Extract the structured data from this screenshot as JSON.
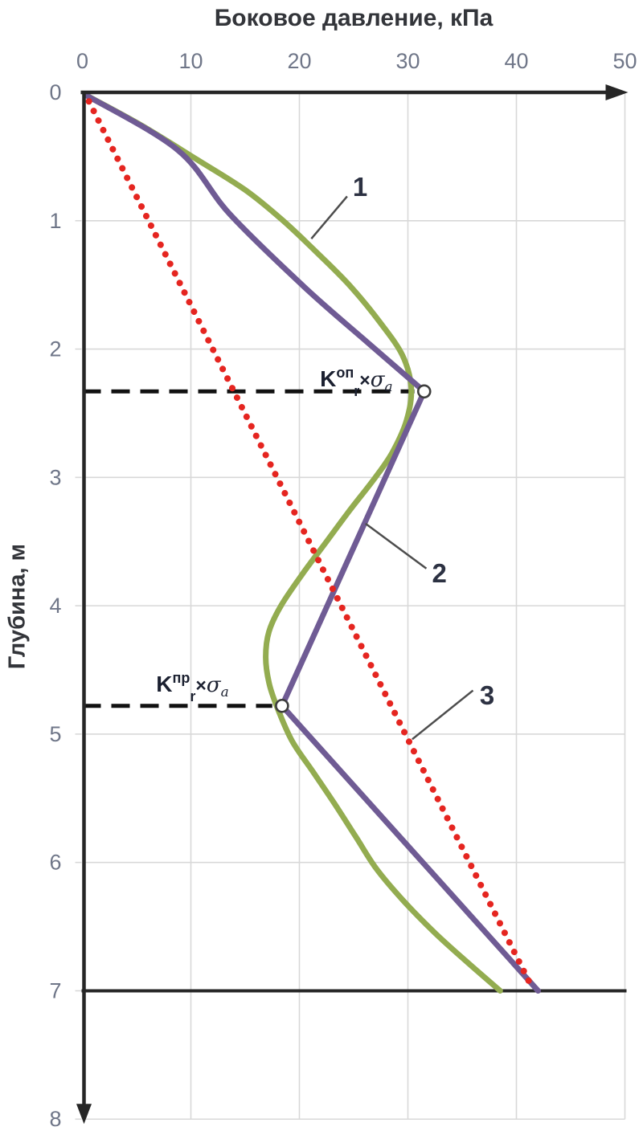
{
  "chart_data": {
    "type": "line",
    "title": "Боковое давление, кПа",
    "xlabel": "Боковое давление, кПа",
    "ylabel": "Глубина, м",
    "x_axis": {
      "min": 0,
      "max": 50,
      "ticks": [
        "0",
        "10",
        "20",
        "30",
        "40",
        "50"
      ],
      "position": "top",
      "arrow": true
    },
    "y_axis": {
      "min": 0,
      "max": 8,
      "ticks": [
        "0",
        "1",
        "2",
        "3",
        "4",
        "5",
        "6",
        "7",
        "8"
      ],
      "position": "left",
      "direction": "down",
      "arrow": true
    },
    "grid": true,
    "base_line_depth": 7,
    "series": [
      {
        "id": "1",
        "name": "1",
        "color": "#93AC50",
        "style": "solid-smooth",
        "width": 7,
        "points_kpa_depth": [
          [
            0.3,
            0.02
          ],
          [
            5.5,
            0.26
          ],
          [
            10.5,
            0.52
          ],
          [
            15,
            0.76
          ],
          [
            18.5,
            1.0
          ],
          [
            22,
            1.28
          ],
          [
            24.8,
            1.52
          ],
          [
            27.5,
            1.8
          ],
          [
            29.5,
            2.05
          ],
          [
            30.3,
            2.3
          ],
          [
            29.9,
            2.55
          ],
          [
            28.6,
            2.8
          ],
          [
            27,
            3.0
          ],
          [
            24.7,
            3.25
          ],
          [
            22.5,
            3.5
          ],
          [
            20.3,
            3.75
          ],
          [
            18.3,
            4.0
          ],
          [
            17.2,
            4.2
          ],
          [
            16.9,
            4.4
          ],
          [
            17.2,
            4.6
          ],
          [
            17.9,
            4.78
          ],
          [
            19.3,
            5.05
          ],
          [
            21.3,
            5.3
          ],
          [
            23.3,
            5.55
          ],
          [
            25.2,
            5.8
          ],
          [
            27.1,
            6.05
          ],
          [
            29.6,
            6.3
          ],
          [
            32.5,
            6.55
          ],
          [
            35.5,
            6.78
          ],
          [
            38.5,
            7.0
          ]
        ]
      },
      {
        "id": "2",
        "name": "2",
        "color": "#6F5B94",
        "style": "solid",
        "width": 7,
        "smooth_points": [
          [
            0.3,
            0.02
          ],
          [
            8.8,
            0.45
          ],
          [
            13.6,
            0.95
          ],
          [
            20.5,
            1.52
          ],
          [
            26.3,
            1.95
          ],
          [
            31.5,
            2.33
          ]
        ],
        "line_points": [
          [
            31.5,
            2.33
          ],
          [
            18.4,
            4.78
          ],
          [
            42.0,
            7.0
          ]
        ]
      },
      {
        "id": "3",
        "name": "3",
        "color": "#E52520",
        "style": "dotted",
        "width": 8,
        "points_kpa_depth": [
          [
            0.6,
            0.07
          ],
          [
            41.3,
            6.95
          ]
        ]
      }
    ],
    "markers": [
      {
        "kpa": 31.5,
        "depth": 2.33
      },
      {
        "kpa": 18.4,
        "depth": 4.78
      }
    ],
    "dashed_levels": [
      {
        "depth": 2.33,
        "kpa_end": 30.6,
        "anchor": {
          "kpa": 28.6,
          "depth": 2.29
        },
        "label": {
          "base": "K",
          "sup": "оп",
          "sub": "r",
          "times": "×",
          "sigma": "σ",
          "sigma_sub": "a"
        }
      },
      {
        "depth": 4.78,
        "kpa_end": 17.5,
        "anchor": {
          "kpa": 13.5,
          "depth": 4.67
        },
        "label": {
          "base": "K",
          "sup": "пр",
          "sub": "r",
          "times": "×",
          "sigma": "σ",
          "sigma_sub": "a"
        }
      }
    ],
    "series_labels": [
      {
        "text": "1",
        "at": {
          "kpa": 25.6,
          "depth": 0.74
        },
        "leader_from": {
          "kpa": 21.1,
          "depth": 1.14
        },
        "leader_to": {
          "kpa": 24.4,
          "depth": 0.81
        }
      },
      {
        "text": "2",
        "at": {
          "kpa": 32.9,
          "depth": 3.75
        },
        "leader_from": {
          "kpa": 26.1,
          "depth": 3.36
        },
        "leader_to": {
          "kpa": 31.7,
          "depth": 3.71
        }
      },
      {
        "text": "3",
        "at": {
          "kpa": 37.3,
          "depth": 4.7
        },
        "leader_from": {
          "kpa": 30.4,
          "depth": 5.04
        },
        "leader_to": {
          "kpa": 36.0,
          "depth": 4.66
        }
      }
    ],
    "colors": {
      "grid": "#D8D8D8",
      "axis": "#262626",
      "marker_stroke": "#3D3D3D",
      "marker_fill": "#FFFFFF",
      "dash_line": "#111111",
      "leader": "#4D4D4D",
      "tick_label": "#6F7688",
      "title": "#33353A",
      "annotation": "#2C3142",
      "formula": "#1B2030"
    }
  }
}
